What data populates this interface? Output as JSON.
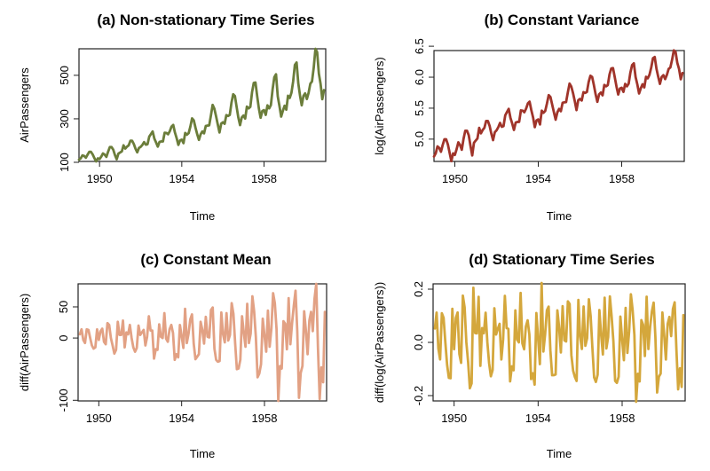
{
  "chart_data": [
    {
      "type": "line",
      "title": "(a) Non-stationary Time Series",
      "xlabel": "Time",
      "ylabel": "AirPassengers",
      "color": "#6b7d3a",
      "xlim": [
        1949,
        1961
      ],
      "ylim": [
        104,
        622
      ],
      "xticks": [
        1950,
        1954,
        1958
      ],
      "yticks": [
        100,
        300,
        500
      ],
      "series": [
        {
          "start": 1949,
          "frequency": 12,
          "values": [
            112,
            118,
            132,
            129,
            121,
            135,
            148,
            148,
            136,
            119,
            104,
            118,
            115,
            126,
            141,
            135,
            125,
            149,
            170,
            170,
            158,
            133,
            114,
            140,
            145,
            150,
            178,
            163,
            172,
            178,
            199,
            199,
            184,
            162,
            146,
            166,
            171,
            180,
            193,
            181,
            183,
            218,
            230,
            242,
            209,
            191,
            172,
            194,
            196,
            196,
            236,
            235,
            229,
            243,
            264,
            272,
            237,
            211,
            180,
            201,
            204,
            188,
            235,
            227,
            234,
            264,
            302,
            293,
            259,
            229,
            203,
            229,
            242,
            233,
            267,
            269,
            270,
            315,
            364,
            347,
            312,
            274,
            237,
            278,
            284,
            277,
            317,
            313,
            318,
            374,
            413,
            405,
            355,
            306,
            271,
            306,
            315,
            301,
            356,
            348,
            355,
            422,
            465,
            467,
            404,
            347,
            305,
            336,
            340,
            318,
            362,
            348,
            363,
            435,
            491,
            505,
            404,
            359,
            310,
            337,
            360,
            342,
            406,
            396,
            420,
            472,
            548,
            559,
            463,
            407,
            362,
            405,
            417,
            391,
            419,
            461,
            472,
            535,
            622,
            606,
            508,
            461,
            390,
            432
          ]
        }
      ]
    },
    {
      "type": "line",
      "title": "(b) Constant Variance",
      "xlabel": "Time",
      "ylabel": "log(AirPassengers)",
      "color": "#a0342a",
      "xlim": [
        1949,
        1961
      ],
      "ylim": [
        4.64,
        6.43
      ],
      "xticks": [
        1950,
        1954,
        1958
      ],
      "yticks": [
        5.0,
        5.5,
        6.0,
        6.5
      ],
      "transform": "log"
    },
    {
      "type": "line",
      "title": "(c) Constant Mean",
      "xlabel": "Time",
      "ylabel": "diff(AirPassengers)",
      "color": "#e2a184",
      "xlim": [
        1949,
        1961
      ],
      "ylim": [
        -101,
        87
      ],
      "xticks": [
        1950,
        1954,
        1958
      ],
      "yticks": [
        -100,
        0,
        50
      ],
      "transform": "diff"
    },
    {
      "type": "line",
      "title": "(d) Stationary Time Series",
      "xlabel": "Time",
      "ylabel": "diff(log(AirPassengers))",
      "color": "#d4a73c",
      "xlim": [
        1949,
        1961
      ],
      "ylim": [
        -0.22,
        0.22
      ],
      "xticks": [
        1950,
        1954,
        1958
      ],
      "yticks": [
        -0.2,
        0.0,
        0.2
      ],
      "transform": "difflog"
    }
  ]
}
